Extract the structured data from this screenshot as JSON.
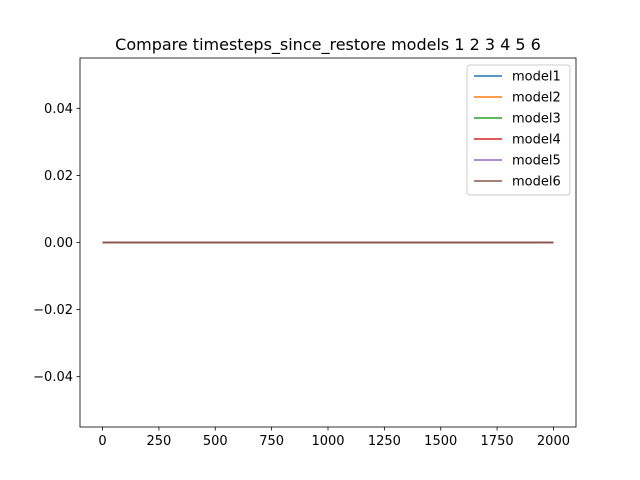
{
  "chart_data": {
    "type": "line",
    "title": "Compare timesteps_since_restore models 1 2 3 4 5 6",
    "xlabel": "",
    "ylabel": "",
    "xlim": [
      -100,
      2100
    ],
    "ylim": [
      -0.055,
      0.055
    ],
    "xticks": [
      0,
      250,
      500,
      750,
      1000,
      1250,
      1500,
      1750,
      2000
    ],
    "xtick_labels": [
      "0",
      "250",
      "500",
      "750",
      "1000",
      "1250",
      "1500",
      "1750",
      "2000"
    ],
    "yticks": [
      -0.04,
      -0.02,
      0.0,
      0.02,
      0.04
    ],
    "ytick_labels": [
      "−0.04",
      "−0.02",
      "0.00",
      "0.02",
      "0.04"
    ],
    "grid": false,
    "legend_position": "top-right",
    "series": [
      {
        "name": "model1",
        "color": "#1f77b4",
        "x": [
          0,
          2000
        ],
        "y": [
          0,
          0
        ]
      },
      {
        "name": "model2",
        "color": "#ff7f0e",
        "x": [
          0,
          2000
        ],
        "y": [
          0,
          0
        ]
      },
      {
        "name": "model3",
        "color": "#2ca02c",
        "x": [
          0,
          2000
        ],
        "y": [
          0,
          0
        ]
      },
      {
        "name": "model4",
        "color": "#d62728",
        "x": [
          0,
          2000
        ],
        "y": [
          0,
          0
        ]
      },
      {
        "name": "model5",
        "color": "#9467bd",
        "x": [
          0,
          2000
        ],
        "y": [
          0,
          0
        ]
      },
      {
        "name": "model6",
        "color": "#8c564b",
        "x": [
          0,
          2000
        ],
        "y": [
          0,
          0
        ]
      }
    ]
  }
}
